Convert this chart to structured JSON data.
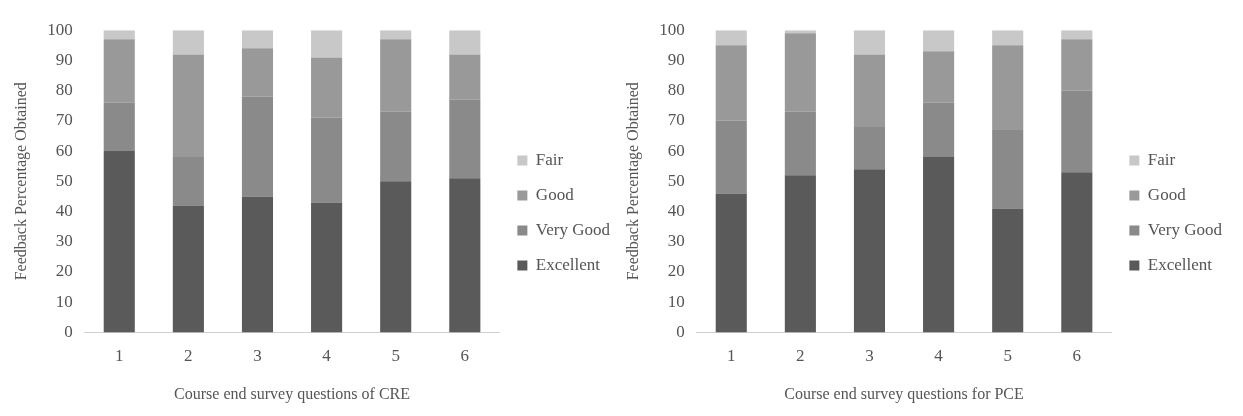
{
  "chart_data": [
    {
      "type": "bar",
      "stacked": true,
      "categories": [
        "1",
        "2",
        "3",
        "4",
        "5",
        "6"
      ],
      "xlabel": "Course end survey questions of CRE",
      "ylabel": "Feedback Percentage Obtained",
      "ylim": [
        0,
        100
      ],
      "yticks": [
        0,
        10,
        20,
        30,
        40,
        50,
        60,
        70,
        80,
        90,
        100
      ],
      "grid": false,
      "legend": "right",
      "series": [
        {
          "name": "Excellent",
          "color": "#5a5a5a",
          "values": [
            60,
            42,
            45,
            43,
            50,
            51
          ]
        },
        {
          "name": "Very Good",
          "color": "#8a8a8a",
          "values": [
            16,
            16,
            33,
            28,
            23,
            26
          ]
        },
        {
          "name": "Good",
          "color": "#999999",
          "values": [
            21,
            34,
            16,
            20,
            24,
            15
          ]
        },
        {
          "name": "Fair",
          "color": "#c8c8c8",
          "values": [
            3,
            8,
            6,
            9,
            3,
            8
          ]
        }
      ]
    },
    {
      "type": "bar",
      "stacked": true,
      "categories": [
        "1",
        "2",
        "3",
        "4",
        "5",
        "6"
      ],
      "xlabel": "Course end survey questions for PCE",
      "ylabel": "Feedback Percentage Obtained",
      "ylim": [
        0,
        100
      ],
      "yticks": [
        0,
        10,
        20,
        30,
        40,
        50,
        60,
        70,
        80,
        90,
        100
      ],
      "grid": false,
      "legend": "right",
      "series": [
        {
          "name": "Excellent",
          "color": "#5a5a5a",
          "values": [
            46,
            52,
            54,
            58,
            41,
            53
          ]
        },
        {
          "name": "Very Good",
          "color": "#8a8a8a",
          "values": [
            24,
            21,
            14,
            18,
            26,
            27
          ]
        },
        {
          "name": "Good",
          "color": "#999999",
          "values": [
            25,
            26,
            24,
            17,
            28,
            17
          ]
        },
        {
          "name": "Fair",
          "color": "#c8c8c8",
          "values": [
            5,
            1,
            8,
            7,
            5,
            3
          ]
        }
      ]
    }
  ]
}
